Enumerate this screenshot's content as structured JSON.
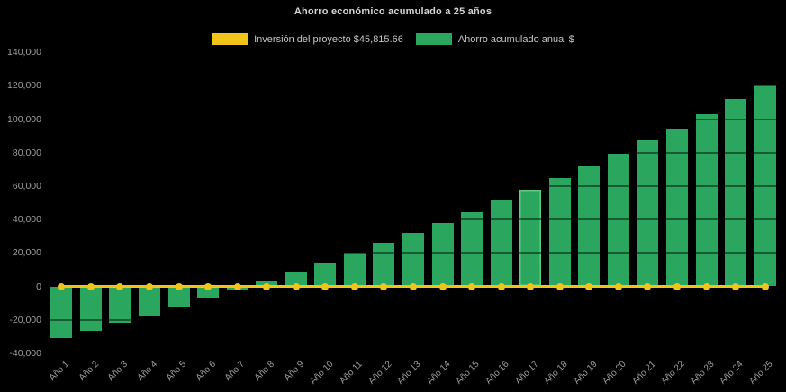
{
  "chart_data": {
    "type": "bar",
    "title": "Ahorro económico acumulado a 25 años",
    "background": "#000000",
    "text_colors": {
      "title": "#d6d6d6",
      "legend": "#c6c6c6",
      "ticks": "#9e9e9e"
    },
    "categories": [
      "Año 1",
      "Año 2",
      "Año 3",
      "Año 4",
      "Año 5",
      "Año 6",
      "Año 7",
      "Año 8",
      "Año 9",
      "Año 10",
      "Año 11",
      "Año 12",
      "Año 13",
      "Año 14",
      "Año 15",
      "Año 16",
      "Año 17",
      "Año 18",
      "Año 19",
      "Año 20",
      "Año 21",
      "Año 22",
      "Año 23",
      "Año 24",
      "Año 25"
    ],
    "series": [
      {
        "name": "Inversión del proyecto $45,815.66",
        "type": "line",
        "color": "#f0c419",
        "constant_value": 0,
        "values": [
          0,
          0,
          0,
          0,
          0,
          0,
          0,
          0,
          0,
          0,
          0,
          0,
          0,
          0,
          0,
          0,
          0,
          0,
          0,
          0,
          0,
          0,
          0,
          0,
          0
        ]
      },
      {
        "name": "Ahorro acumulado anual $",
        "type": "bar",
        "color": "#2ba65e",
        "values": [
          -31000,
          -26500,
          -22000,
          -17500,
          -12000,
          -7500,
          -2500,
          3500,
          9000,
          14500,
          20000,
          26000,
          32000,
          38000,
          44500,
          51500,
          58000,
          65000,
          72000,
          79500,
          87500,
          94500,
          103000,
          112000,
          120500
        ]
      }
    ],
    "ylim": [
      -40000,
      140000
    ],
    "ytick_step": 20000,
    "xlabel": "",
    "ylabel": "",
    "grid": "horizontal-dark-overlay",
    "legend_position": "top",
    "highlighted_category_index": 16
  }
}
